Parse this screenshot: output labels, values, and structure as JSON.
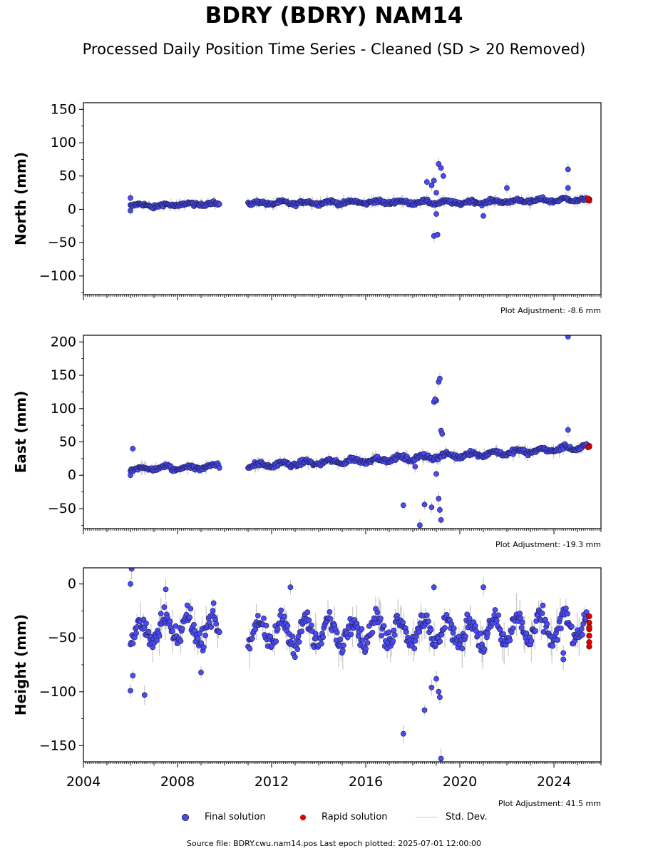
{
  "title": "BDRY (BDRY) NAM14",
  "subtitle": "Processed Daily Position Time Series - Cleaned (SD > 20 Removed)",
  "legend": {
    "final": "Final solution",
    "rapid": "Rapid solution",
    "std": "Std. Dev."
  },
  "footer": "Source file: BDRY.cwu.nam14.pos  Last epoch plotted: 2025-07-01 12:00:00",
  "colors": {
    "final": "#4b4bf0",
    "rapid": "#e00000",
    "std": "#c8c8c8"
  },
  "chart_data": [
    {
      "type": "scatter",
      "ylabel": "North (mm)",
      "ylim": [
        -128,
        160
      ],
      "yticks": [
        150,
        100,
        50,
        0,
        -50,
        -100
      ],
      "ytick_labels": [
        "150",
        "100",
        "50",
        "0",
        "−50",
        "−100"
      ],
      "xlim": [
        2004,
        2026
      ],
      "adjustment": "Plot Adjustment: -8.6 mm",
      "base": [
        [
          2006.0,
          7
        ],
        [
          2007.0,
          5
        ],
        [
          2008.0,
          7
        ],
        [
          2009.0,
          8
        ],
        [
          2009.8,
          8
        ],
        [
          2011.0,
          9
        ],
        [
          2014.0,
          10
        ],
        [
          2017.0,
          11
        ],
        [
          2020.0,
          10
        ],
        [
          2023.0,
          13
        ],
        [
          2025.5,
          15
        ]
      ],
      "amplitude": 2,
      "outliers": [
        [
          2006.0,
          17
        ],
        [
          2006.0,
          -2
        ],
        [
          2018.6,
          41
        ],
        [
          2018.8,
          36
        ],
        [
          2018.9,
          43
        ],
        [
          2019.1,
          68
        ],
        [
          2019.2,
          62
        ],
        [
          2019.3,
          50
        ],
        [
          2019.0,
          25
        ],
        [
          2018.9,
          -40
        ],
        [
          2019.05,
          -38
        ],
        [
          2019.0,
          -7
        ],
        [
          2021.0,
          -10
        ],
        [
          2022.0,
          32
        ],
        [
          2024.6,
          60
        ],
        [
          2024.6,
          32
        ]
      ],
      "rapid": [
        [
          2025.5,
          15
        ],
        [
          2025.5,
          13
        ],
        [
          2025.45,
          16
        ]
      ]
    },
    {
      "type": "scatter",
      "ylabel": "East (mm)",
      "ylim": [
        -80,
        210
      ],
      "yticks": [
        200,
        150,
        100,
        50,
        0,
        -50
      ],
      "ytick_labels": [
        "200",
        "150",
        "100",
        "50",
        "0",
        "−50"
      ],
      "xlim": [
        2004,
        2026
      ],
      "adjustment": "Plot Adjustment: -19.3 mm",
      "base": [
        [
          2006.0,
          9
        ],
        [
          2007.0,
          11
        ],
        [
          2008.0,
          11
        ],
        [
          2009.0,
          12
        ],
        [
          2009.8,
          15
        ],
        [
          2011.0,
          14
        ],
        [
          2014.0,
          19
        ],
        [
          2017.0,
          24
        ],
        [
          2020.0,
          30
        ],
        [
          2023.0,
          36
        ],
        [
          2025.5,
          43
        ]
      ],
      "amplitude": 3,
      "outliers": [
        [
          2006.1,
          40
        ],
        [
          2006.0,
          0
        ],
        [
          2017.6,
          -45
        ],
        [
          2018.1,
          13
        ],
        [
          2018.3,
          -75
        ],
        [
          2018.5,
          -44
        ],
        [
          2018.8,
          -48
        ],
        [
          2018.9,
          110
        ],
        [
          2019.0,
          112
        ],
        [
          2018.95,
          114
        ],
        [
          2019.1,
          140
        ],
        [
          2019.15,
          145
        ],
        [
          2019.2,
          67
        ],
        [
          2019.25,
          62
        ],
        [
          2019.0,
          2
        ],
        [
          2019.1,
          -35
        ],
        [
          2019.15,
          -52
        ],
        [
          2019.2,
          -67
        ],
        [
          2024.6,
          208
        ],
        [
          2024.6,
          68
        ]
      ],
      "rapid": [
        [
          2025.5,
          43
        ],
        [
          2025.5,
          44
        ],
        [
          2025.45,
          42
        ]
      ]
    },
    {
      "type": "scatter",
      "ylabel": "Height (mm)",
      "ylim": [
        -165,
        15
      ],
      "yticks": [
        0,
        -50,
        -100,
        -150
      ],
      "ytick_labels": [
        "0",
        "−50",
        "−100",
        "−150"
      ],
      "xlim": [
        2004,
        2026
      ],
      "xticks": [
        2004,
        2008,
        2012,
        2016,
        2020,
        2024
      ],
      "xtick_labels": [
        "2004",
        "2008",
        "2012",
        "2016",
        "2020",
        "2024"
      ],
      "adjustment": "Plot Adjustment: 41.5 mm",
      "base": [
        [
          2006.0,
          -45
        ],
        [
          2007.0,
          -45
        ],
        [
          2008.0,
          -40
        ],
        [
          2009.0,
          -42
        ],
        [
          2009.8,
          -40
        ],
        [
          2011.0,
          -45
        ],
        [
          2014.0,
          -45
        ],
        [
          2017.0,
          -42
        ],
        [
          2020.0,
          -45
        ],
        [
          2023.0,
          -42
        ],
        [
          2025.5,
          -40
        ]
      ],
      "amplitude": 12,
      "outliers": [
        [
          2006.05,
          14
        ],
        [
          2006.0,
          0
        ],
        [
          2006.0,
          -99
        ],
        [
          2006.1,
          -85
        ],
        [
          2006.6,
          -103
        ],
        [
          2007.5,
          -5
        ],
        [
          2009.0,
          -82
        ],
        [
          2012.8,
          -3
        ],
        [
          2017.6,
          -139
        ],
        [
          2018.5,
          -117
        ],
        [
          2018.8,
          -96
        ],
        [
          2018.9,
          -3
        ],
        [
          2019.0,
          -88
        ],
        [
          2019.1,
          -100
        ],
        [
          2019.15,
          -105
        ],
        [
          2019.2,
          -162
        ],
        [
          2021.0,
          -3
        ],
        [
          2024.4,
          -64
        ],
        [
          2024.4,
          -70
        ]
      ],
      "rapid": [
        [
          2025.5,
          -30
        ],
        [
          2025.5,
          -36
        ],
        [
          2025.5,
          -42
        ],
        [
          2025.5,
          -48
        ],
        [
          2025.5,
          -54
        ],
        [
          2025.5,
          -58
        ],
        [
          2025.5,
          -40
        ]
      ]
    }
  ]
}
